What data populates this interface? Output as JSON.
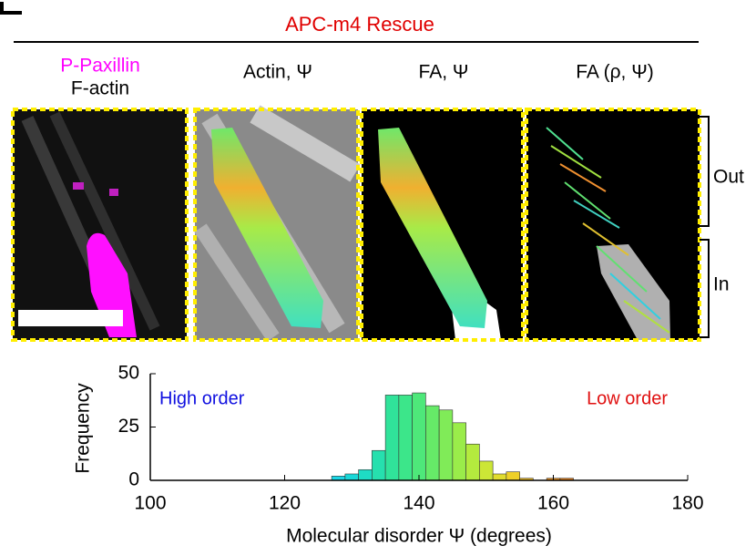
{
  "header": {
    "title": "APC-m4 Rescue"
  },
  "panels": {
    "first": [
      "P-Paxillin",
      "F-actin"
    ],
    "labels": [
      "Actin, Ψ",
      "FA, Ψ",
      "FA (ρ, Ψ)"
    ]
  },
  "regions": [
    "Out",
    "In"
  ],
  "chart_data": {
    "type": "histogram",
    "xlabel": "Molecular disorder Ψ (degrees)",
    "ylabel": "Frequency",
    "annotations": [
      {
        "text": "High order",
        "color": "#1010e0"
      },
      {
        "text": "Low order",
        "color": "#e01010"
      }
    ],
    "bins": [
      127,
      129,
      131,
      133,
      135,
      137,
      139,
      141,
      143,
      145,
      147,
      149,
      151,
      153,
      155,
      157,
      159,
      161,
      163
    ],
    "values": [
      2,
      3,
      5,
      14,
      40,
      40,
      41,
      35,
      33,
      27,
      17,
      9,
      3,
      4,
      1,
      0,
      1,
      1
    ],
    "colors": [
      "#1ad6e6",
      "#1ad8d8",
      "#1edcc4",
      "#26e0ae",
      "#30e39a",
      "#3ce68a",
      "#4ee87a",
      "#66ea68",
      "#80eb58",
      "#9aec4a",
      "#b4ea3e",
      "#cce636",
      "#e0dc2e",
      "#eed028",
      "#f4c024",
      "#f2aa20",
      "#ee9420",
      "#e88420"
    ],
    "xlim": [
      100,
      180
    ],
    "ylim": [
      0,
      50
    ],
    "xticks": [
      100,
      120,
      140,
      160,
      180
    ],
    "yticks": [
      0,
      25,
      50
    ]
  }
}
